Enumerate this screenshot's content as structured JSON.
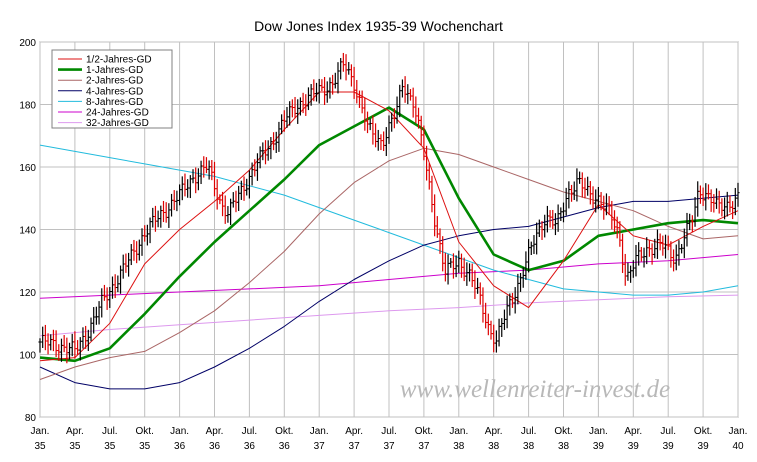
{
  "chart_data": {
    "type": "line",
    "title": "Dow Jones Index 1935-39 Wochenchart",
    "watermark": "www.wellenreiter-invest.de",
    "x_range_years": [
      1935.0,
      1940.0
    ],
    "ylim": [
      80,
      200
    ],
    "y_ticks": [
      80,
      100,
      120,
      140,
      160,
      180,
      200
    ],
    "grid": true,
    "legend_position": "top-left",
    "x_ticks": [
      {
        "month": "Jan.",
        "year": "35",
        "x": 1935.0
      },
      {
        "month": "Apr.",
        "year": "35",
        "x": 1935.25
      },
      {
        "month": "Jul.",
        "year": "35",
        "x": 1935.5
      },
      {
        "month": "Okt.",
        "year": "35",
        "x": 1935.75
      },
      {
        "month": "Jan.",
        "year": "36",
        "x": 1936.0
      },
      {
        "month": "Apr.",
        "year": "36",
        "x": 1936.25
      },
      {
        "month": "Jul.",
        "year": "36",
        "x": 1936.5
      },
      {
        "month": "Okt.",
        "year": "36",
        "x": 1936.75
      },
      {
        "month": "Jan.",
        "year": "37",
        "x": 1937.0
      },
      {
        "month": "Apr.",
        "year": "37",
        "x": 1937.25
      },
      {
        "month": "Jul.",
        "year": "37",
        "x": 1937.5
      },
      {
        "month": "Okt.",
        "year": "37",
        "x": 1937.75
      },
      {
        "month": "Jan.",
        "year": "38",
        "x": 1938.0
      },
      {
        "month": "Apr.",
        "year": "38",
        "x": 1938.25
      },
      {
        "month": "Jul.",
        "year": "38",
        "x": 1938.5
      },
      {
        "month": "Okt.",
        "year": "38",
        "x": 1938.75
      },
      {
        "month": "Jan.",
        "year": "39",
        "x": 1939.0
      },
      {
        "month": "Apr.",
        "year": "39",
        "x": 1939.25
      },
      {
        "month": "Jul.",
        "year": "39",
        "x": 1939.5
      },
      {
        "month": "Okt.",
        "year": "39",
        "x": 1939.75
      },
      {
        "month": "Jan.",
        "year": "40",
        "x": 1940.0
      }
    ],
    "series": [
      {
        "name": "1/2-Jahres-GD",
        "color": "#dd1111",
        "width": 1,
        "x": [
          1935.0,
          1935.25,
          1935.5,
          1935.75,
          1936.0,
          1936.25,
          1936.5,
          1936.75,
          1937.0,
          1937.25,
          1937.5,
          1937.75,
          1938.0,
          1938.25,
          1938.5,
          1938.75,
          1939.0,
          1939.25,
          1939.5,
          1939.75,
          1940.0
        ],
        "y": [
          98,
          99,
          110,
          129,
          140,
          149,
          159,
          172,
          184,
          184,
          178,
          166,
          136,
          122,
          115,
          130,
          148,
          138,
          135,
          141,
          146
        ]
      },
      {
        "name": "1-Jahres-GD",
        "color": "#008800",
        "width": 2.6,
        "x": [
          1935.0,
          1935.25,
          1935.5,
          1935.75,
          1936.0,
          1936.25,
          1936.5,
          1936.75,
          1937.0,
          1937.25,
          1937.5,
          1937.75,
          1938.0,
          1938.25,
          1938.5,
          1938.75,
          1939.0,
          1939.25,
          1939.5,
          1939.75,
          1940.0
        ],
        "y": [
          99,
          98,
          102,
          113,
          125,
          136,
          146,
          156,
          167,
          173,
          179,
          172,
          150,
          132,
          127,
          130,
          138,
          140,
          142,
          143,
          142
        ]
      },
      {
        "name": "2-Jahres-GD",
        "color": "#aa6666",
        "width": 1,
        "x": [
          1935.0,
          1935.25,
          1935.5,
          1935.75,
          1936.0,
          1936.25,
          1936.5,
          1936.75,
          1937.0,
          1937.25,
          1937.5,
          1937.75,
          1938.0,
          1938.25,
          1938.5,
          1938.75,
          1939.0,
          1939.25,
          1939.5,
          1939.75,
          1940.0
        ],
        "y": [
          92,
          96,
          99,
          101,
          107,
          114,
          123,
          133,
          145,
          155,
          162,
          166,
          164,
          160,
          156,
          152,
          149,
          146,
          141,
          137,
          138
        ]
      },
      {
        "name": "4-Jahres-GD",
        "color": "#000066",
        "width": 1,
        "x": [
          1935.0,
          1935.25,
          1935.5,
          1935.75,
          1936.0,
          1936.25,
          1936.5,
          1936.75,
          1937.0,
          1937.25,
          1937.5,
          1937.75,
          1938.0,
          1938.25,
          1938.5,
          1938.75,
          1939.0,
          1939.25,
          1939.5,
          1939.75,
          1940.0
        ],
        "y": [
          96,
          91,
          89,
          89,
          91,
          96,
          102,
          109,
          117,
          124,
          130,
          135,
          138,
          140,
          141,
          144,
          147,
          149,
          149,
          150,
          151
        ]
      },
      {
        "name": "8-Jahres-GD",
        "color": "#22bbdd",
        "width": 1,
        "x": [
          1935.0,
          1935.25,
          1935.5,
          1935.75,
          1936.0,
          1936.25,
          1936.5,
          1936.75,
          1937.0,
          1937.25,
          1937.5,
          1937.75,
          1938.0,
          1938.25,
          1938.5,
          1938.75,
          1939.0,
          1939.25,
          1939.5,
          1939.75,
          1940.0
        ],
        "y": [
          167,
          165,
          163,
          161,
          159,
          157,
          154,
          151,
          147,
          143,
          139,
          135,
          131,
          127,
          124,
          121,
          120,
          119,
          119,
          120,
          122
        ]
      },
      {
        "name": "24-Jahres-GD",
        "color": "#cc00cc",
        "width": 1,
        "x": [
          1935.0,
          1935.5,
          1936.0,
          1936.5,
          1937.0,
          1937.5,
          1938.0,
          1938.5,
          1939.0,
          1939.5,
          1940.0
        ],
        "y": [
          118,
          119,
          120,
          121,
          122,
          124,
          126,
          127,
          129,
          130,
          132
        ]
      },
      {
        "name": "32-Jahres-GD",
        "color": "#dd99ee",
        "width": 1,
        "x": [
          1935.0,
          1935.5,
          1936.0,
          1936.5,
          1937.0,
          1937.5,
          1938.0,
          1938.5,
          1939.0,
          1939.5,
          1940.0
        ],
        "y": [
          106,
          108,
          109.5,
          111,
          112.5,
          114,
          115,
          116.5,
          117.5,
          118.5,
          119
        ]
      }
    ],
    "price_path": {
      "name": "Dow Jones Index weekly",
      "color_up": "#000000",
      "color_down": "#dd0000",
      "x": [
        1935.0,
        1935.12,
        1935.2,
        1935.25,
        1935.35,
        1935.45,
        1935.55,
        1935.65,
        1935.75,
        1935.85,
        1936.0,
        1936.1,
        1936.2,
        1936.3,
        1936.35,
        1936.45,
        1936.55,
        1936.65,
        1936.75,
        1936.85,
        1936.95,
        1937.1,
        1937.18,
        1937.25,
        1937.35,
        1937.45,
        1937.55,
        1937.6,
        1937.68,
        1937.75,
        1937.83,
        1937.9,
        1938.0,
        1938.08,
        1938.15,
        1938.22,
        1938.27,
        1938.35,
        1938.45,
        1938.55,
        1938.62,
        1938.7,
        1938.78,
        1938.85,
        1938.92,
        1939.0,
        1939.08,
        1939.15,
        1939.2,
        1939.27,
        1939.35,
        1939.45,
        1939.55,
        1939.62,
        1939.68,
        1939.72,
        1939.78,
        1939.85,
        1939.92,
        1940.0
      ],
      "y": [
        104,
        103,
        102,
        101,
        108,
        117,
        124,
        131,
        139,
        144,
        151,
        157,
        160,
        148,
        145,
        153,
        161,
        167,
        175,
        180,
        183,
        187,
        193,
        187,
        172,
        168,
        177,
        187,
        180,
        164,
        143,
        126,
        130,
        125,
        118,
        108,
        104,
        115,
        125,
        138,
        144,
        141,
        152,
        155,
        152,
        150,
        145,
        138,
        124,
        130,
        134,
        135,
        131,
        138,
        144,
        153,
        151,
        147,
        148,
        150
      ]
    }
  }
}
